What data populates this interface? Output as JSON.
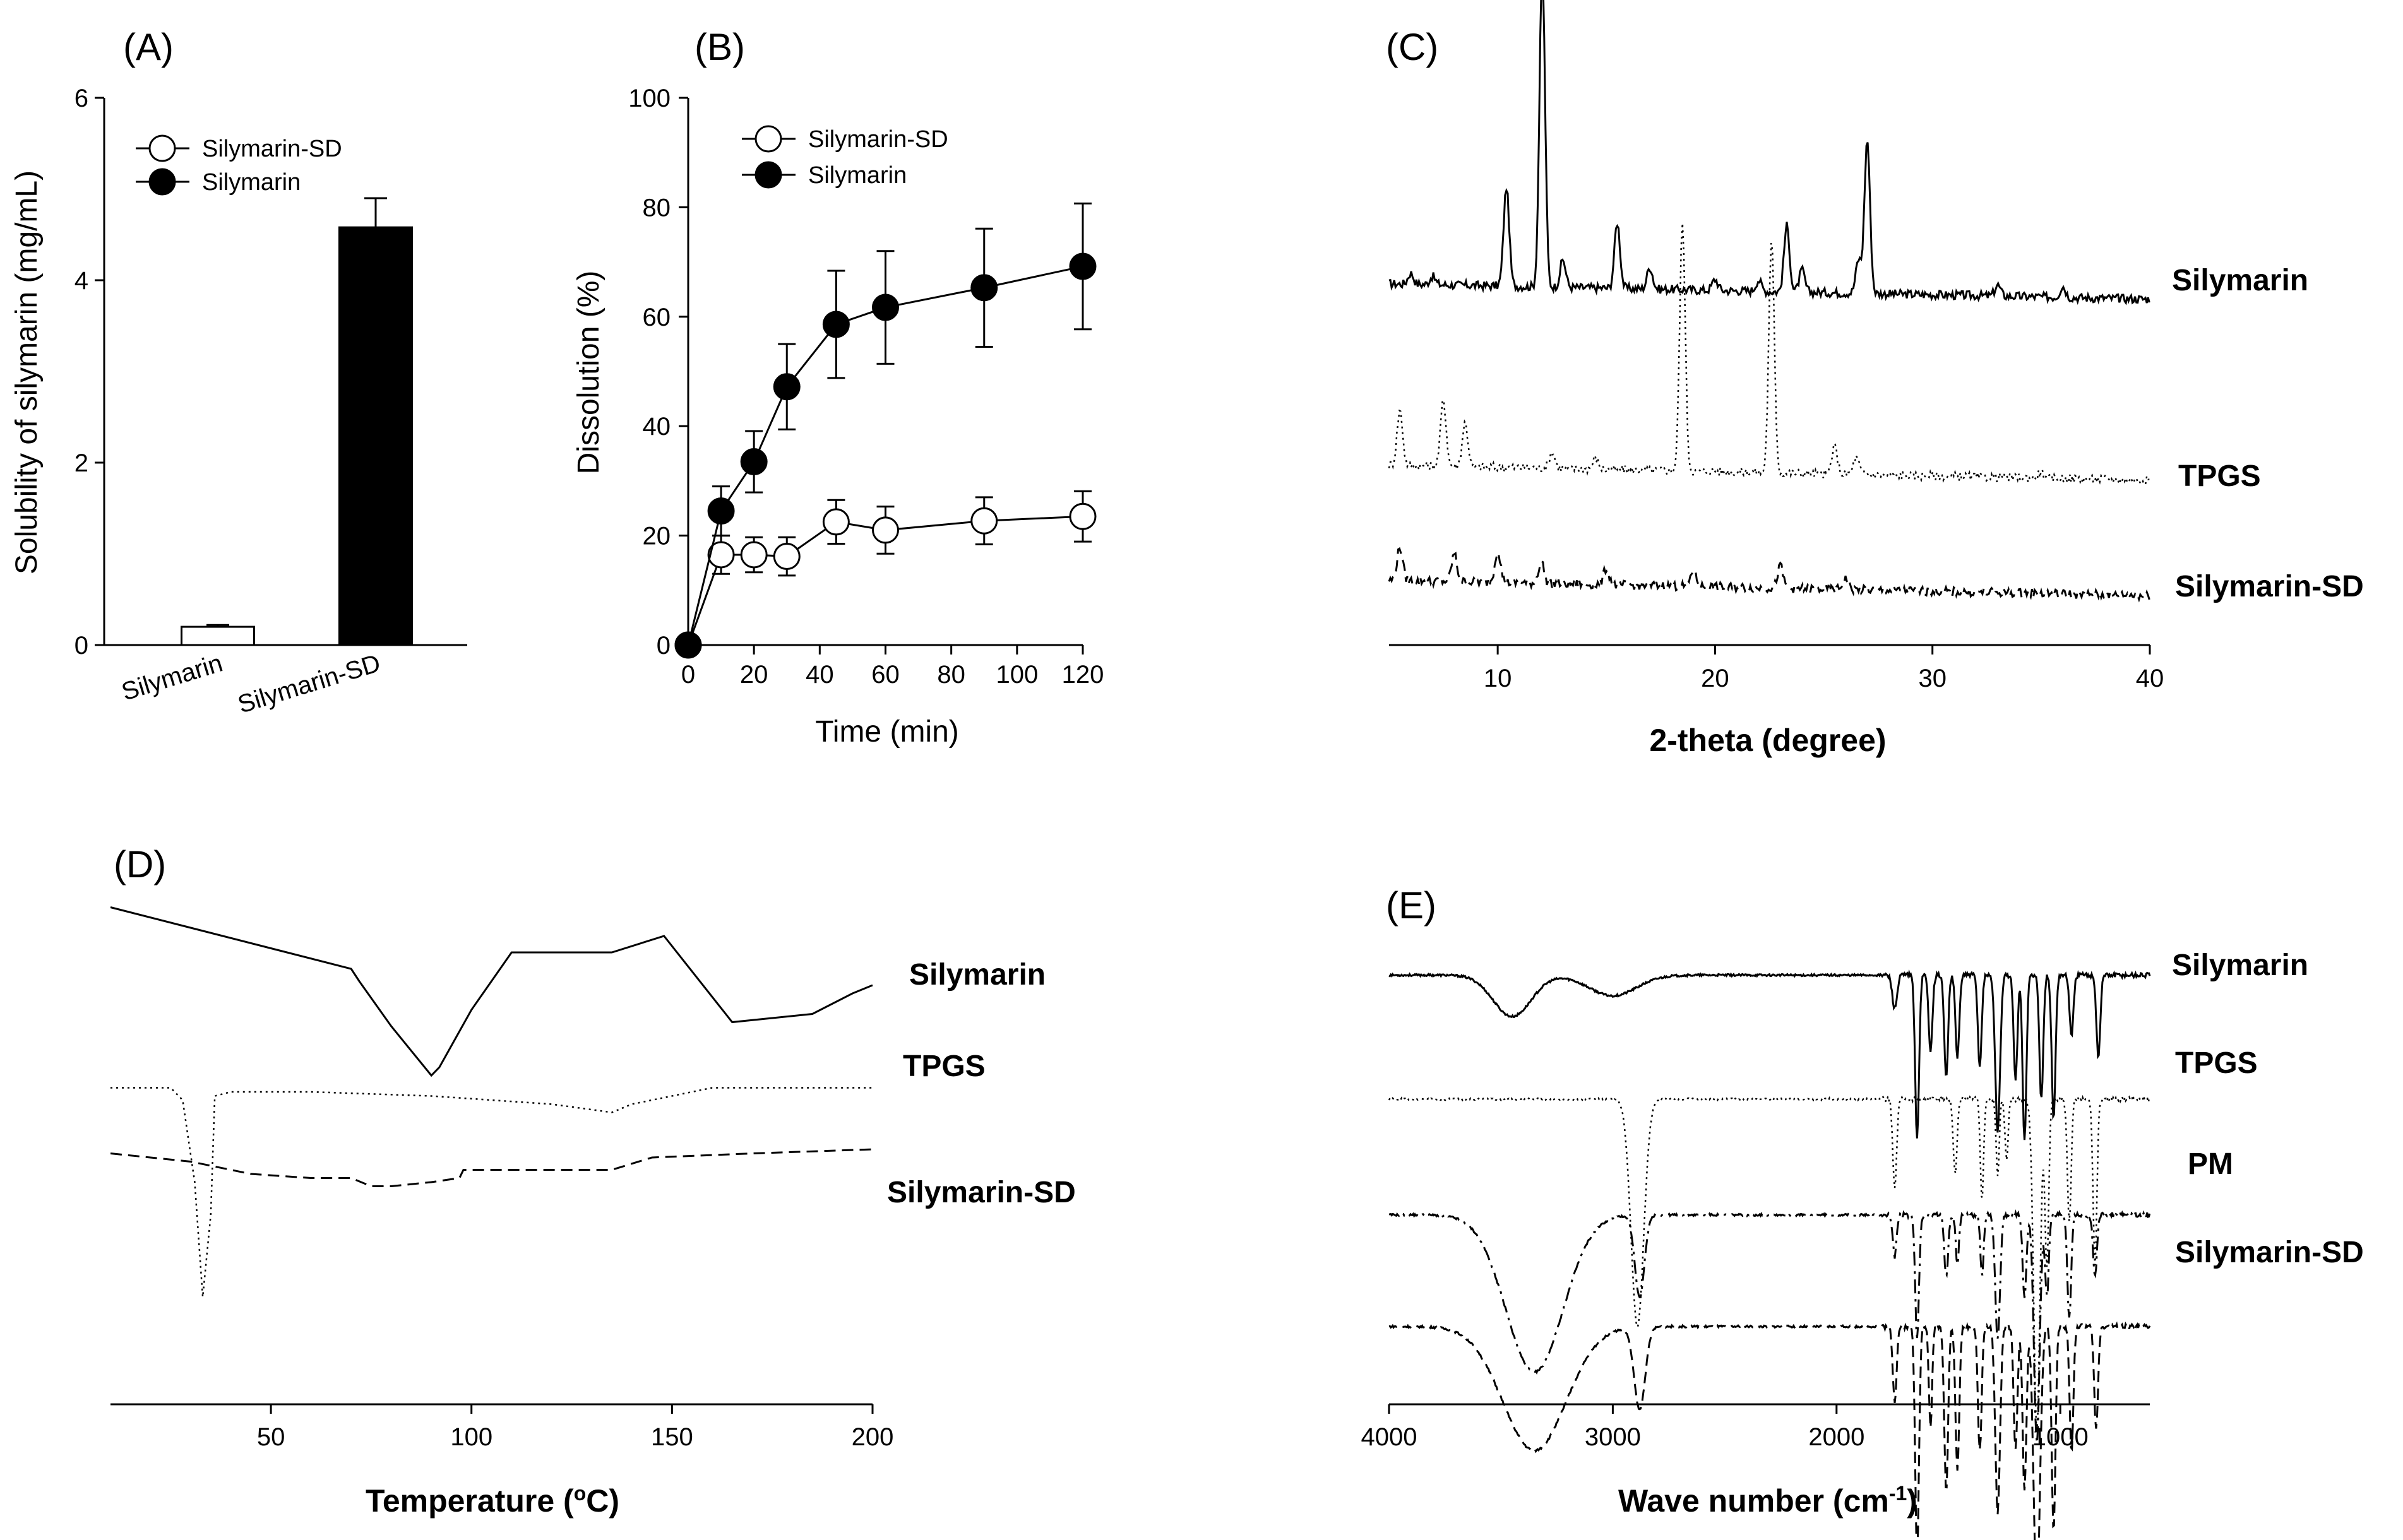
{
  "chart_data": [
    {
      "id": "A",
      "panel_label": "(A)",
      "type": "bar",
      "categories": [
        "Silymarin",
        "Silymarin-SD"
      ],
      "values": [
        0.2,
        4.58
      ],
      "errors": [
        0.02,
        0.32
      ],
      "fills": [
        "#ffffff",
        "#000000"
      ],
      "ylabel": "Solubility of silymarin (mg/mL)",
      "ylim": [
        0,
        6
      ],
      "yticks": [
        0,
        2,
        4,
        6
      ],
      "legend": [
        {
          "name": "Silymarin-SD",
          "marker": "open-circle"
        },
        {
          "name": "Silymarin",
          "marker": "filled-circle"
        }
      ]
    },
    {
      "id": "B",
      "panel_label": "(B)",
      "type": "line",
      "xlabel": "Time (min)",
      "ylabel": "Dissolution (%)",
      "xlim": [
        0,
        120
      ],
      "ylim": [
        0,
        100
      ],
      "xticks": [
        0,
        20,
        40,
        60,
        80,
        100,
        120
      ],
      "yticks": [
        0,
        20,
        40,
        60,
        80,
        100
      ],
      "series": [
        {
          "name": "Silymarin-SD",
          "marker": "open-circle",
          "x": [
            0,
            10,
            20,
            30,
            45,
            60,
            90,
            120
          ],
          "y": [
            0,
            16.5,
            16.5,
            16.2,
            22.5,
            21,
            22.7,
            23.5
          ],
          "err": [
            0,
            3.5,
            3.2,
            3.5,
            4,
            4.3,
            4.3,
            4.6
          ]
        },
        {
          "name": "Silymarin",
          "marker": "filled-circle",
          "x": [
            0,
            10,
            20,
            30,
            45,
            60,
            90,
            120
          ],
          "y": [
            0,
            24.5,
            33.5,
            47.2,
            58.6,
            61.7,
            65.3,
            69.2
          ],
          "err": [
            0,
            4.5,
            5.6,
            7.8,
            9.8,
            10.3,
            10.8,
            11.5
          ]
        }
      ],
      "legend": [
        {
          "name": "Silymarin-SD",
          "marker": "open-circle"
        },
        {
          "name": "Silymarin",
          "marker": "filled-circle"
        }
      ]
    },
    {
      "id": "C",
      "panel_label": "(C)",
      "type": "line",
      "xlabel": "2-theta (degree)",
      "xlim": [
        5,
        40
      ],
      "xticks": [
        10,
        20,
        30,
        40
      ],
      "y_axis_shown": false,
      "series": [
        {
          "name": "Silymarin",
          "style": "solid",
          "baseline": 63,
          "peaks": [
            [
              6,
              2
            ],
            [
              7,
              1.5
            ],
            [
              10.4,
              18
            ],
            [
              12.05,
              58
            ],
            [
              13,
              5
            ],
            [
              15.5,
              12
            ],
            [
              17,
              4
            ],
            [
              20,
              2
            ],
            [
              22,
              2
            ],
            [
              23.3,
              12
            ],
            [
              24,
              4
            ],
            [
              26.6,
              6
            ],
            [
              27,
              28
            ],
            [
              33,
              2
            ],
            [
              36,
              2
            ]
          ]
        },
        {
          "name": "TPGS",
          "style": "dotted",
          "baseline": 30,
          "peaks": [
            [
              5.5,
              10
            ],
            [
              7.5,
              12
            ],
            [
              8.5,
              8
            ],
            [
              12.5,
              3
            ],
            [
              14.5,
              2
            ],
            [
              18.5,
              45
            ],
            [
              22.6,
              42
            ],
            [
              25.5,
              5
            ],
            [
              26.5,
              3
            ],
            [
              35,
              1
            ]
          ]
        },
        {
          "name": "Silymarin-SD",
          "style": "dashed",
          "baseline": 9,
          "peaks": [
            [
              5.5,
              6
            ],
            [
              8,
              5
            ],
            [
              10,
              6
            ],
            [
              12,
              4
            ],
            [
              15,
              3
            ],
            [
              19,
              3
            ],
            [
              23,
              4
            ],
            [
              26,
              2
            ]
          ]
        }
      ]
    },
    {
      "id": "D",
      "panel_label": "(D)",
      "type": "line",
      "xlabel": "Temperature (°C)",
      "xlabel_main": "Temperature (",
      "xlabel_sup": "o",
      "xlabel_tail": "C)",
      "xlim": [
        10,
        200
      ],
      "xticks": [
        50,
        100,
        150,
        200
      ],
      "y_axis_shown": false,
      "series": [
        {
          "name": "Silymarin",
          "style": "solid",
          "x": [
            10,
            30,
            50,
            70,
            72,
            80,
            90,
            92,
            100,
            110,
            120,
            135,
            148,
            165,
            185,
            195,
            200
          ],
          "y": [
            0.5,
            0.0,
            -0.5,
            -1.0,
            -1.3,
            -2.4,
            -3.6,
            -3.4,
            -2.0,
            -0.6,
            -0.6,
            -0.6,
            -0.2,
            -2.3,
            -2.1,
            -1.6,
            -1.4
          ]
        },
        {
          "name": "TPGS",
          "style": "dotted",
          "x": [
            10,
            25,
            28,
            31,
            33,
            35,
            36,
            40,
            60,
            90,
            120,
            135,
            140,
            160,
            200
          ],
          "y": [
            -3.9,
            -3.9,
            -4.2,
            -6.2,
            -9.0,
            -7.0,
            -4.1,
            -4.0,
            -4.0,
            -4.1,
            -4.3,
            -4.5,
            -4.3,
            -3.9,
            -3.9
          ]
        },
        {
          "name": "Silymarin-SD",
          "style": "dashed",
          "x": [
            10,
            30,
            40,
            45,
            60,
            70,
            75,
            80,
            90,
            97,
            98,
            110,
            135,
            145,
            170,
            200
          ],
          "y": [
            -5.5,
            -5.7,
            -5.9,
            -6.0,
            -6.1,
            -6.1,
            -6.3,
            -6.3,
            -6.2,
            -6.1,
            -5.9,
            -5.9,
            -5.9,
            -5.6,
            -5.5,
            -5.4
          ]
        }
      ]
    },
    {
      "id": "E",
      "panel_label": "(E)",
      "type": "line",
      "xlabel": "Wave number (cm⁻¹)",
      "xlabel_main": "Wave number (cm",
      "xlabel_sup": "-1",
      "xlabel_tail": ")",
      "xlim": [
        4000,
        600
      ],
      "xticks": [
        4000,
        3000,
        2000,
        1000
      ],
      "y_axis_shown": false,
      "series": [
        {
          "name": "Silymarin",
          "style": "solid",
          "baseline": 100,
          "dips": [
            [
              3450,
              10,
              120
            ],
            [
              3000,
              5,
              150
            ],
            [
              1740,
              8,
              15
            ],
            [
              1640,
              40,
              12
            ],
            [
              1580,
              18,
              12
            ],
            [
              1510,
              25,
              12
            ],
            [
              1460,
              20,
              12
            ],
            [
              1360,
              22,
              12
            ],
            [
              1280,
              38,
              15
            ],
            [
              1200,
              25,
              12
            ],
            [
              1160,
              40,
              12
            ],
            [
              1085,
              30,
              12
            ],
            [
              1030,
              35,
              12
            ],
            [
              950,
              15,
              12
            ],
            [
              830,
              20,
              12
            ]
          ]
        },
        {
          "name": "TPGS",
          "style": "dotted",
          "baseline": 70,
          "dips": [
            [
              2890,
              55,
              40
            ],
            [
              1740,
              22,
              12
            ],
            [
              1470,
              18,
              12
            ],
            [
              1350,
              25,
              10
            ],
            [
              1280,
              18,
              10
            ],
            [
              1240,
              15,
              10
            ],
            [
              1105,
              80,
              20
            ],
            [
              1060,
              40,
              12
            ],
            [
              960,
              30,
              12
            ],
            [
              845,
              40,
              12
            ]
          ]
        },
        {
          "name": "PM",
          "style": "dashdot",
          "baseline": 42,
          "dips": [
            [
              3350,
              38,
              180
            ],
            [
              2880,
              20,
              30
            ],
            [
              1740,
              10,
              12
            ],
            [
              1640,
              30,
              12
            ],
            [
              1510,
              15,
              12
            ],
            [
              1460,
              12,
              10
            ],
            [
              1350,
              15,
              10
            ],
            [
              1280,
              30,
              15
            ],
            [
              1160,
              20,
              12
            ],
            [
              1105,
              55,
              18
            ],
            [
              1060,
              20,
              12
            ],
            [
              960,
              25,
              12
            ],
            [
              845,
              15,
              12
            ]
          ]
        },
        {
          "name": "Silymarin-SD",
          "style": "dashed",
          "baseline": 15,
          "dips": [
            [
              3350,
              30,
              200
            ],
            [
              2880,
              20,
              35
            ],
            [
              1740,
              18,
              12
            ],
            [
              1640,
              55,
              12
            ],
            [
              1580,
              25,
              10
            ],
            [
              1510,
              40,
              12
            ],
            [
              1460,
              35,
              12
            ],
            [
              1360,
              30,
              12
            ],
            [
              1280,
              45,
              15
            ],
            [
              1200,
              30,
              12
            ],
            [
              1160,
              40,
              12
            ],
            [
              1105,
              65,
              20
            ],
            [
              1030,
              50,
              12
            ],
            [
              950,
              30,
              12
            ],
            [
              840,
              25,
              12
            ]
          ]
        }
      ]
    }
  ]
}
